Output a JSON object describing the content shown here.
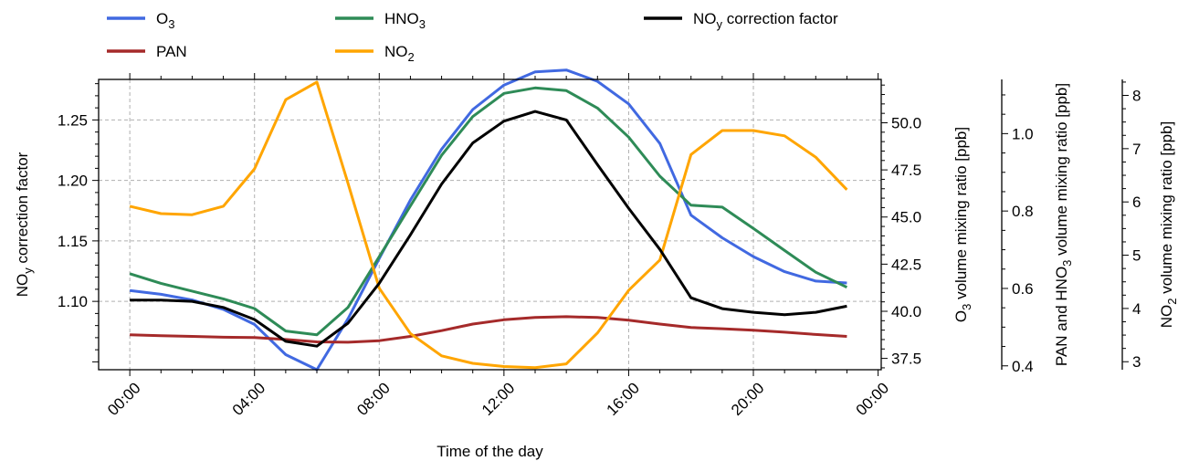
{
  "chart_data": {
    "type": "line",
    "xlabel": "Time of the day",
    "x": [
      0,
      1,
      2,
      3,
      4,
      5,
      6,
      7,
      8,
      9,
      10,
      11,
      12,
      13,
      14,
      15,
      16,
      17,
      18,
      19,
      20,
      21,
      22,
      23
    ],
    "x_ticks": [
      {
        "value": 0,
        "label": "00:00"
      },
      {
        "value": 4,
        "label": "04:00"
      },
      {
        "value": 8,
        "label": "08:00"
      },
      {
        "value": 12,
        "label": "12:00"
      },
      {
        "value": 16,
        "label": "16:00"
      },
      {
        "value": 20,
        "label": "20:00"
      },
      {
        "value": 24,
        "label": "00:00"
      }
    ],
    "xlim": [
      -1,
      24.1
    ],
    "grid": true,
    "legend_position": "top",
    "axes": [
      {
        "id": "noy",
        "side": "left",
        "label": "NOy correction factor",
        "ylim": [
          1.0435,
          1.2835
        ],
        "ticks": [
          {
            "value": 1.1,
            "label": "1.10"
          },
          {
            "value": 1.15,
            "label": "1.15"
          },
          {
            "value": 1.2,
            "label": "1.20"
          },
          {
            "value": 1.25,
            "label": "1.25"
          }
        ]
      },
      {
        "id": "o3",
        "side": "right",
        "label": "O3 volume mixing ratio [ppb]",
        "ylim": [
          36.9,
          52.3
        ],
        "ticks": [
          {
            "value": 37.5,
            "label": "37.5"
          },
          {
            "value": 40.0,
            "label": "40.0"
          },
          {
            "value": 42.5,
            "label": "42.5"
          },
          {
            "value": 45.0,
            "label": "45.0"
          },
          {
            "value": 47.5,
            "label": "47.5"
          },
          {
            "value": 50.0,
            "label": "50.0"
          }
        ]
      },
      {
        "id": "pan_hno3",
        "side": "right",
        "label": "PAN and HNO3 volume mixing ratio [ppb]",
        "ylim": [
          0.39,
          1.14
        ],
        "ticks": [
          {
            "value": 0.4,
            "label": "0.4"
          },
          {
            "value": 0.6,
            "label": "0.6"
          },
          {
            "value": 0.8,
            "label": "0.8"
          },
          {
            "value": 1.0,
            "label": "1.0"
          }
        ]
      },
      {
        "id": "no2",
        "side": "right",
        "label": "NO2 volume mixing ratio [ppb]",
        "ylim": [
          2.85,
          8.3
        ],
        "ticks": [
          {
            "value": 3,
            "label": "3"
          },
          {
            "value": 4,
            "label": "4"
          },
          {
            "value": 5,
            "label": "5"
          },
          {
            "value": 6,
            "label": "6"
          },
          {
            "value": 7,
            "label": "7"
          },
          {
            "value": 8,
            "label": "8"
          }
        ]
      }
    ],
    "series": [
      {
        "name": "O3",
        "axis": "o3",
        "color": "#4169E1",
        "values": [
          41.1,
          40.9,
          40.6,
          40.1,
          39.3,
          37.7,
          36.9,
          39.6,
          42.8,
          45.9,
          48.6,
          50.7,
          52.0,
          52.7,
          52.8,
          52.2,
          51.0,
          48.9,
          45.1,
          43.9,
          42.9,
          42.1,
          41.6,
          41.5
        ]
      },
      {
        "name": "PAN",
        "axis": "pan_hno3",
        "color": "#A52A2A",
        "values": [
          0.48,
          0.478,
          0.476,
          0.474,
          0.473,
          0.468,
          0.462,
          0.461,
          0.465,
          0.476,
          0.491,
          0.508,
          0.519,
          0.525,
          0.527,
          0.525,
          0.518,
          0.508,
          0.499,
          0.496,
          0.492,
          0.487,
          0.481,
          0.476
        ]
      },
      {
        "name": "HNO3",
        "axis": "pan_hno3",
        "color": "#2E8B57",
        "values": [
          0.638,
          0.613,
          0.593,
          0.573,
          0.548,
          0.49,
          0.48,
          0.551,
          0.682,
          0.813,
          0.944,
          1.044,
          1.104,
          1.118,
          1.111,
          1.066,
          0.991,
          0.89,
          0.815,
          0.81,
          0.755,
          0.698,
          0.642,
          0.603
        ]
      },
      {
        "name": "NO2",
        "axis": "no2",
        "color": "#FFA500",
        "values": [
          5.92,
          5.78,
          5.76,
          5.92,
          6.62,
          7.92,
          8.25,
          6.35,
          4.38,
          3.53,
          3.11,
          2.97,
          2.91,
          2.89,
          2.96,
          3.54,
          4.34,
          4.91,
          6.89,
          7.34,
          7.34,
          7.24,
          6.84,
          6.23
        ]
      },
      {
        "name": "NOy correction factor",
        "axis": "noy",
        "color": "#000000",
        "values": [
          1.101,
          1.101,
          1.1,
          1.095,
          1.085,
          1.067,
          1.063,
          1.082,
          1.115,
          1.155,
          1.197,
          1.231,
          1.249,
          1.257,
          1.25,
          1.213,
          1.177,
          1.143,
          1.103,
          1.094,
          1.091,
          1.089,
          1.091,
          1.096
        ]
      }
    ]
  }
}
